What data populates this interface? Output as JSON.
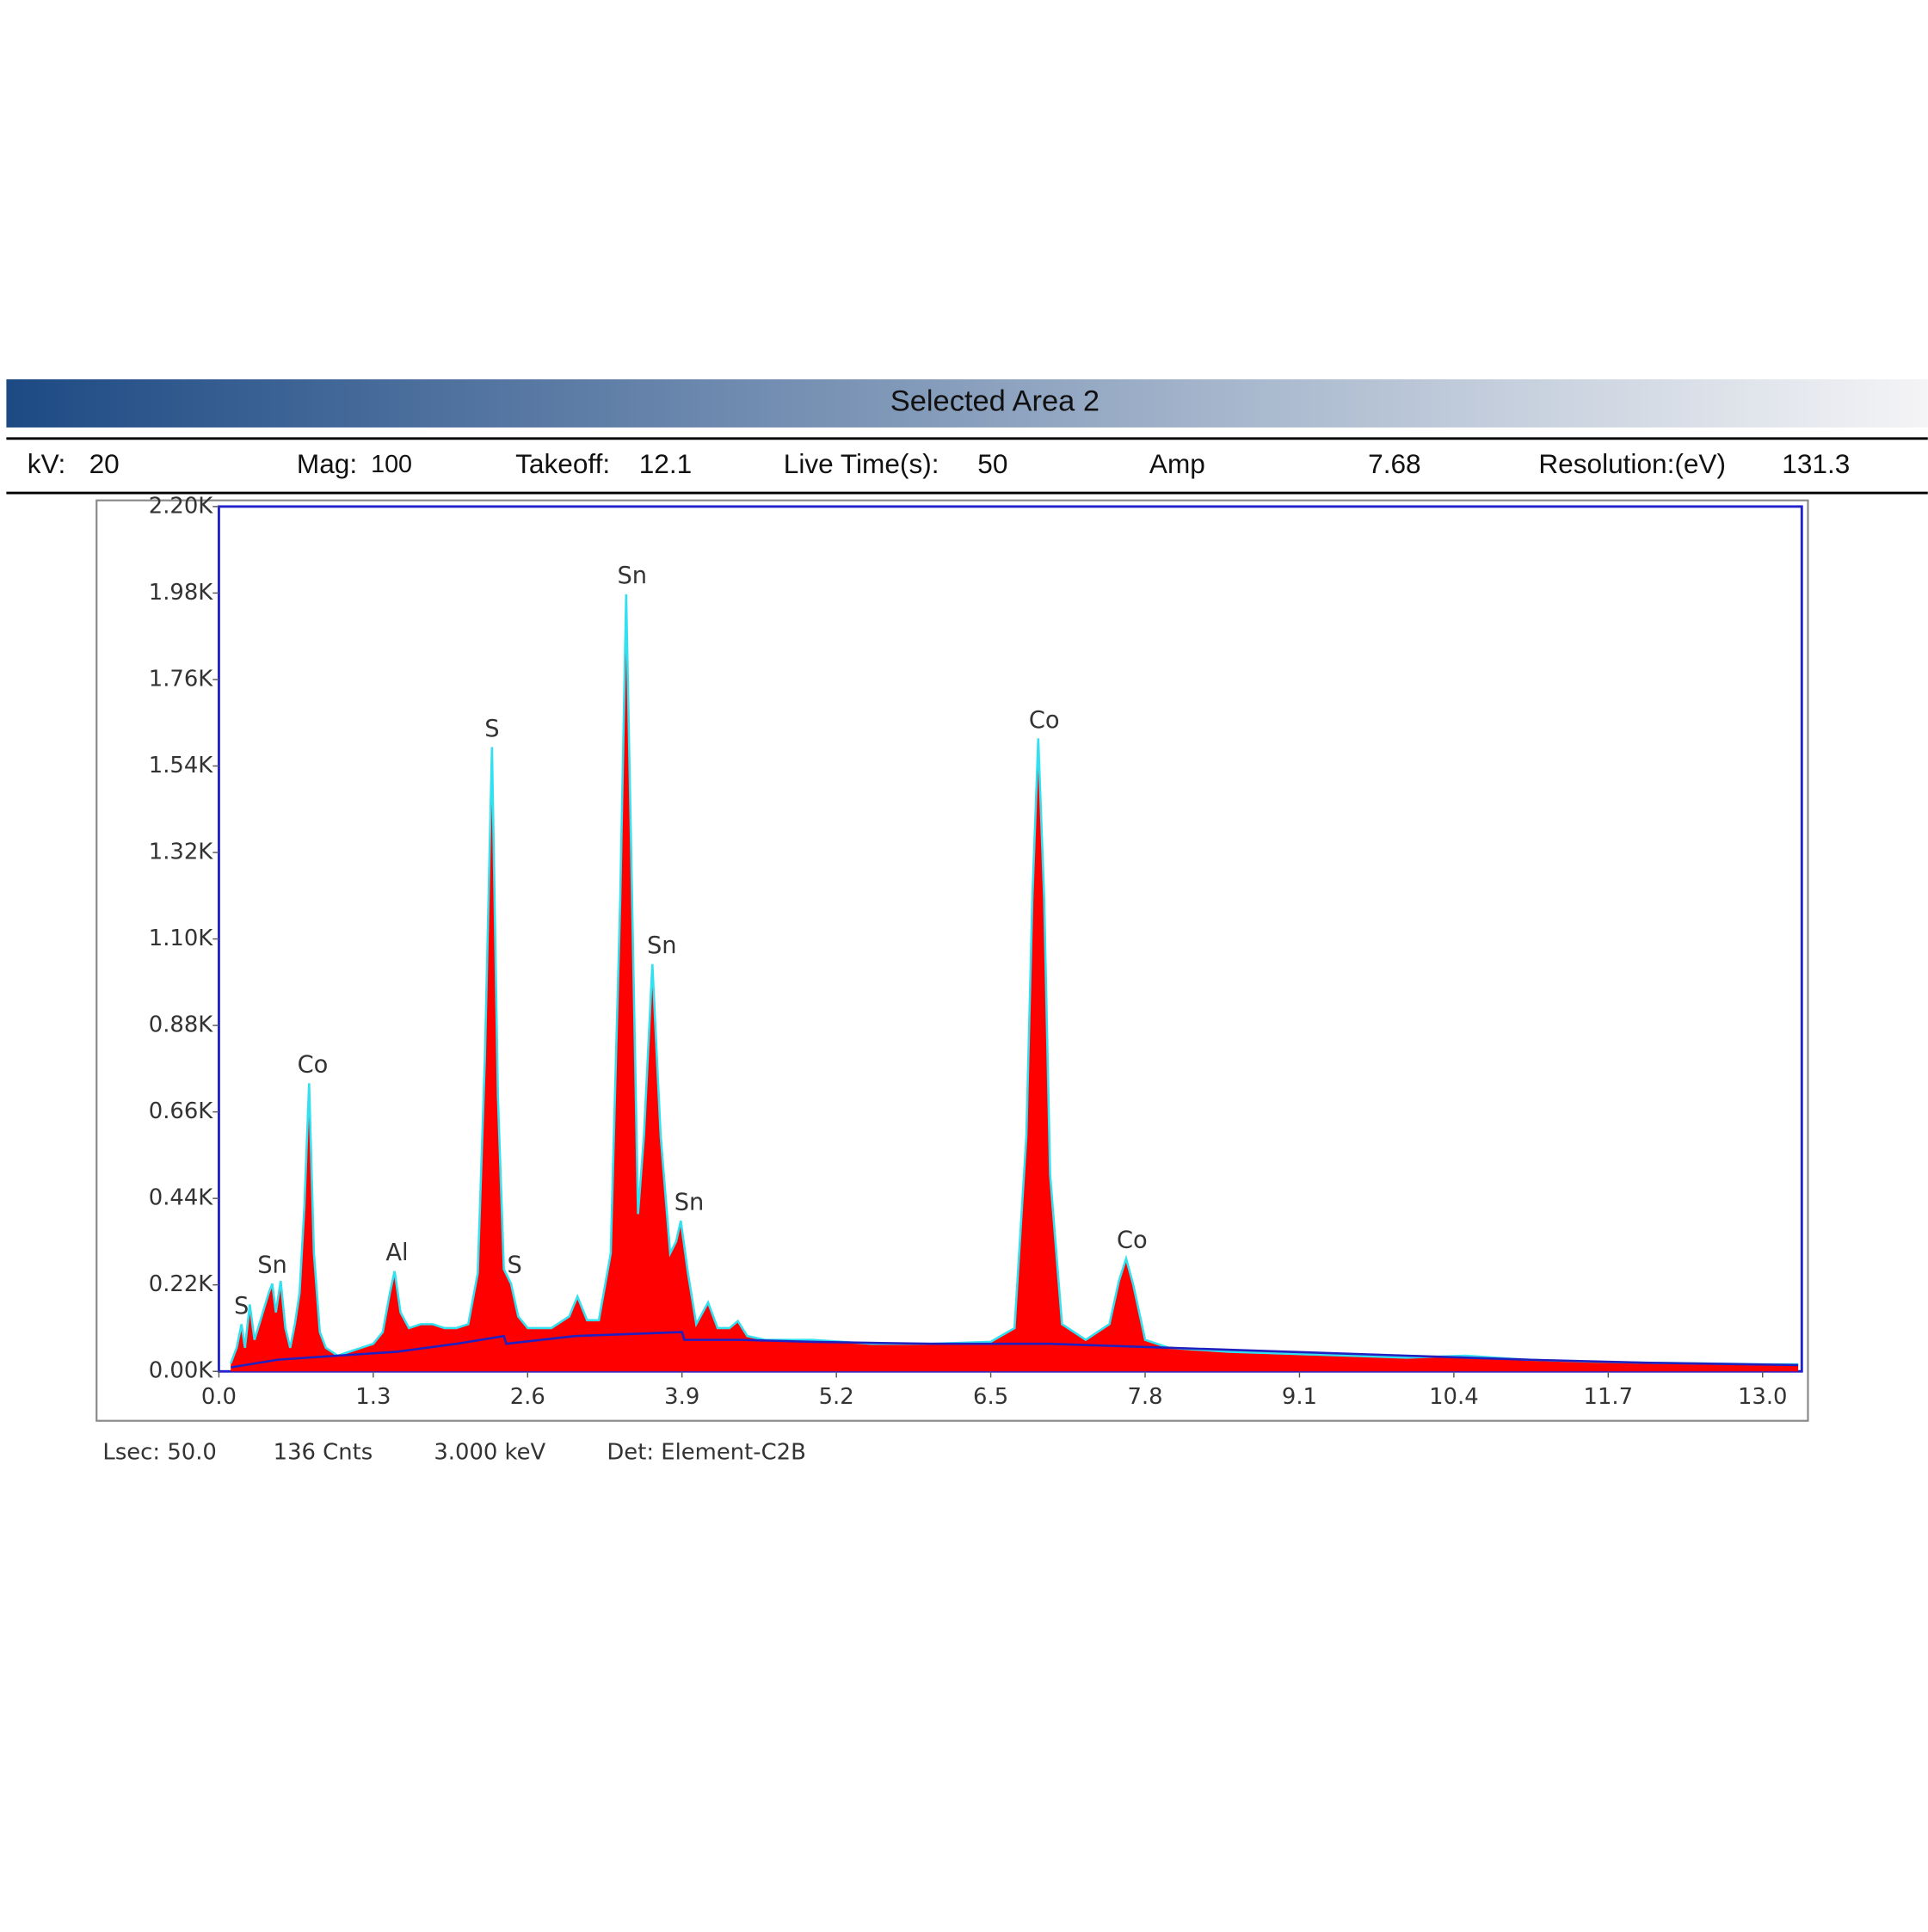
{
  "header": {
    "title": "Selected Area 2",
    "info": [
      {
        "label": "kV:",
        "value": 20
      },
      {
        "label": "Mag:",
        "value": 100
      },
      {
        "label": "Takeoff:",
        "value": 12.1
      },
      {
        "label": "Live Time(s):",
        "value": 50
      },
      {
        "label": "Amp",
        "value": 7.68
      },
      {
        "label": "Resolution:(eV)",
        "value": 131.3
      }
    ]
  },
  "footer": [
    "Lsec: 50.0",
    "136 Cnts",
    "3.000 keV",
    "Det: Element-C2B"
  ],
  "chart_data": {
    "type": "area",
    "xlim": [
      0,
      13.33
    ],
    "ylim": [
      0,
      2200
    ],
    "xticks": [
      {
        "value": 0,
        "label": "0.0"
      },
      1.3,
      2.6,
      3.9,
      5.2,
      6.5,
      7.8,
      9.1,
      10.4,
      11.7,
      {
        "value": 13,
        "label": "13.0"
      }
    ],
    "yticks": [
      {
        "value": 0,
        "label": "0.00K"
      },
      {
        "value": 220,
        "label": "0.22K"
      },
      {
        "value": 440,
        "label": "0.44K"
      },
      {
        "value": 660,
        "label": "0.66K"
      },
      {
        "value": 880,
        "label": "0.88K"
      },
      {
        "value": 1100,
        "label": "1.10K"
      },
      {
        "value": 1320,
        "label": "1.32K"
      },
      {
        "value": 1540,
        "label": "1.54K"
      },
      {
        "value": 1760,
        "label": "1.76K"
      },
      {
        "value": 1980,
        "label": "1.98K"
      },
      {
        "value": 2200,
        "label": "2.20K"
      }
    ],
    "series": [
      {
        "color": "#ff0000",
        "line_color": "#33e0f0",
        "x": [
          0.1,
          0.15,
          0.19,
          0.22,
          0.26,
          0.3,
          0.36,
          0.42,
          0.45,
          0.48,
          0.52,
          0.56,
          0.6,
          0.64,
          0.68,
          0.72,
          0.76,
          0.8,
          0.85,
          0.9,
          1.0,
          1.1,
          1.2,
          1.3,
          1.38,
          1.44,
          1.48,
          1.53,
          1.6,
          1.7,
          1.8,
          1.9,
          2.0,
          2.1,
          2.18,
          2.24,
          2.3,
          2.35,
          2.4,
          2.46,
          2.52,
          2.6,
          2.8,
          2.95,
          3.02,
          3.1,
          3.2,
          3.3,
          3.38,
          3.43,
          3.48,
          3.53,
          3.58,
          3.65,
          3.72,
          3.8,
          3.85,
          3.89,
          3.95,
          4.02,
          4.12,
          4.2,
          4.3,
          4.37,
          4.45,
          4.6,
          5.0,
          5.5,
          6.0,
          6.5,
          6.7,
          6.8,
          6.85,
          6.9,
          6.95,
          7.0,
          7.1,
          7.3,
          7.5,
          7.58,
          7.64,
          7.7,
          7.8,
          8.0,
          8.5,
          9.0,
          9.5,
          10.0,
          10.5,
          11.0,
          11.5,
          12.0,
          12.5,
          13.0,
          13.3
        ],
        "values": [
          20,
          60,
          120,
          60,
          170,
          80,
          140,
          200,
          223,
          150,
          230,
          110,
          60,
          120,
          200,
          420,
          733,
          300,
          100,
          60,
          40,
          50,
          60,
          70,
          100,
          200,
          255,
          150,
          110,
          120,
          120,
          110,
          110,
          120,
          250,
          800,
          1588,
          700,
          260,
          223,
          140,
          110,
          110,
          140,
          190,
          130,
          130,
          300,
          1200,
          1977,
          1200,
          400,
          600,
          1036,
          600,
          300,
          330,
          383,
          250,
          120,
          175,
          110,
          110,
          128,
          90,
          80,
          80,
          70,
          70,
          75,
          110,
          600,
          1200,
          1610,
          1200,
          500,
          120,
          80,
          120,
          230,
          287,
          220,
          80,
          60,
          50,
          45,
          40,
          35,
          40,
          30,
          25,
          22,
          20,
          18,
          18
        ]
      },
      {
        "color": "#2020c0",
        "x": [
          0.1,
          0.5,
          1.0,
          1.5,
          2.0,
          2.4,
          2.42,
          3.0,
          3.9,
          3.92,
          4.4,
          5.0,
          6.0,
          7.0,
          8.0,
          9.0,
          10.0,
          11.0,
          12.0,
          13.3
        ],
        "values": [
          10,
          30,
          40,
          50,
          70,
          90,
          70,
          90,
          100,
          80,
          80,
          75,
          70,
          70,
          60,
          50,
          40,
          30,
          22,
          16
        ]
      }
    ],
    "annotations": [
      {
        "text": "S",
        "x": 0.19,
        "y": 120
      },
      {
        "text": "Sn",
        "x": 0.45,
        "y": 223
      },
      {
        "text": "Co",
        "x": 0.79,
        "y": 733
      },
      {
        "text": "Al",
        "x": 1.5,
        "y": 255
      },
      {
        "text": "S",
        "x": 2.3,
        "y": 1588
      },
      {
        "text": "S",
        "x": 2.49,
        "y": 223
      },
      {
        "text": "Sn",
        "x": 3.48,
        "y": 1977
      },
      {
        "text": "Sn",
        "x": 3.73,
        "y": 1036
      },
      {
        "text": "Sn",
        "x": 3.96,
        "y": 383
      },
      {
        "text": "Co",
        "x": 6.95,
        "y": 1610
      },
      {
        "text": "Co",
        "x": 7.69,
        "y": 287
      }
    ]
  }
}
